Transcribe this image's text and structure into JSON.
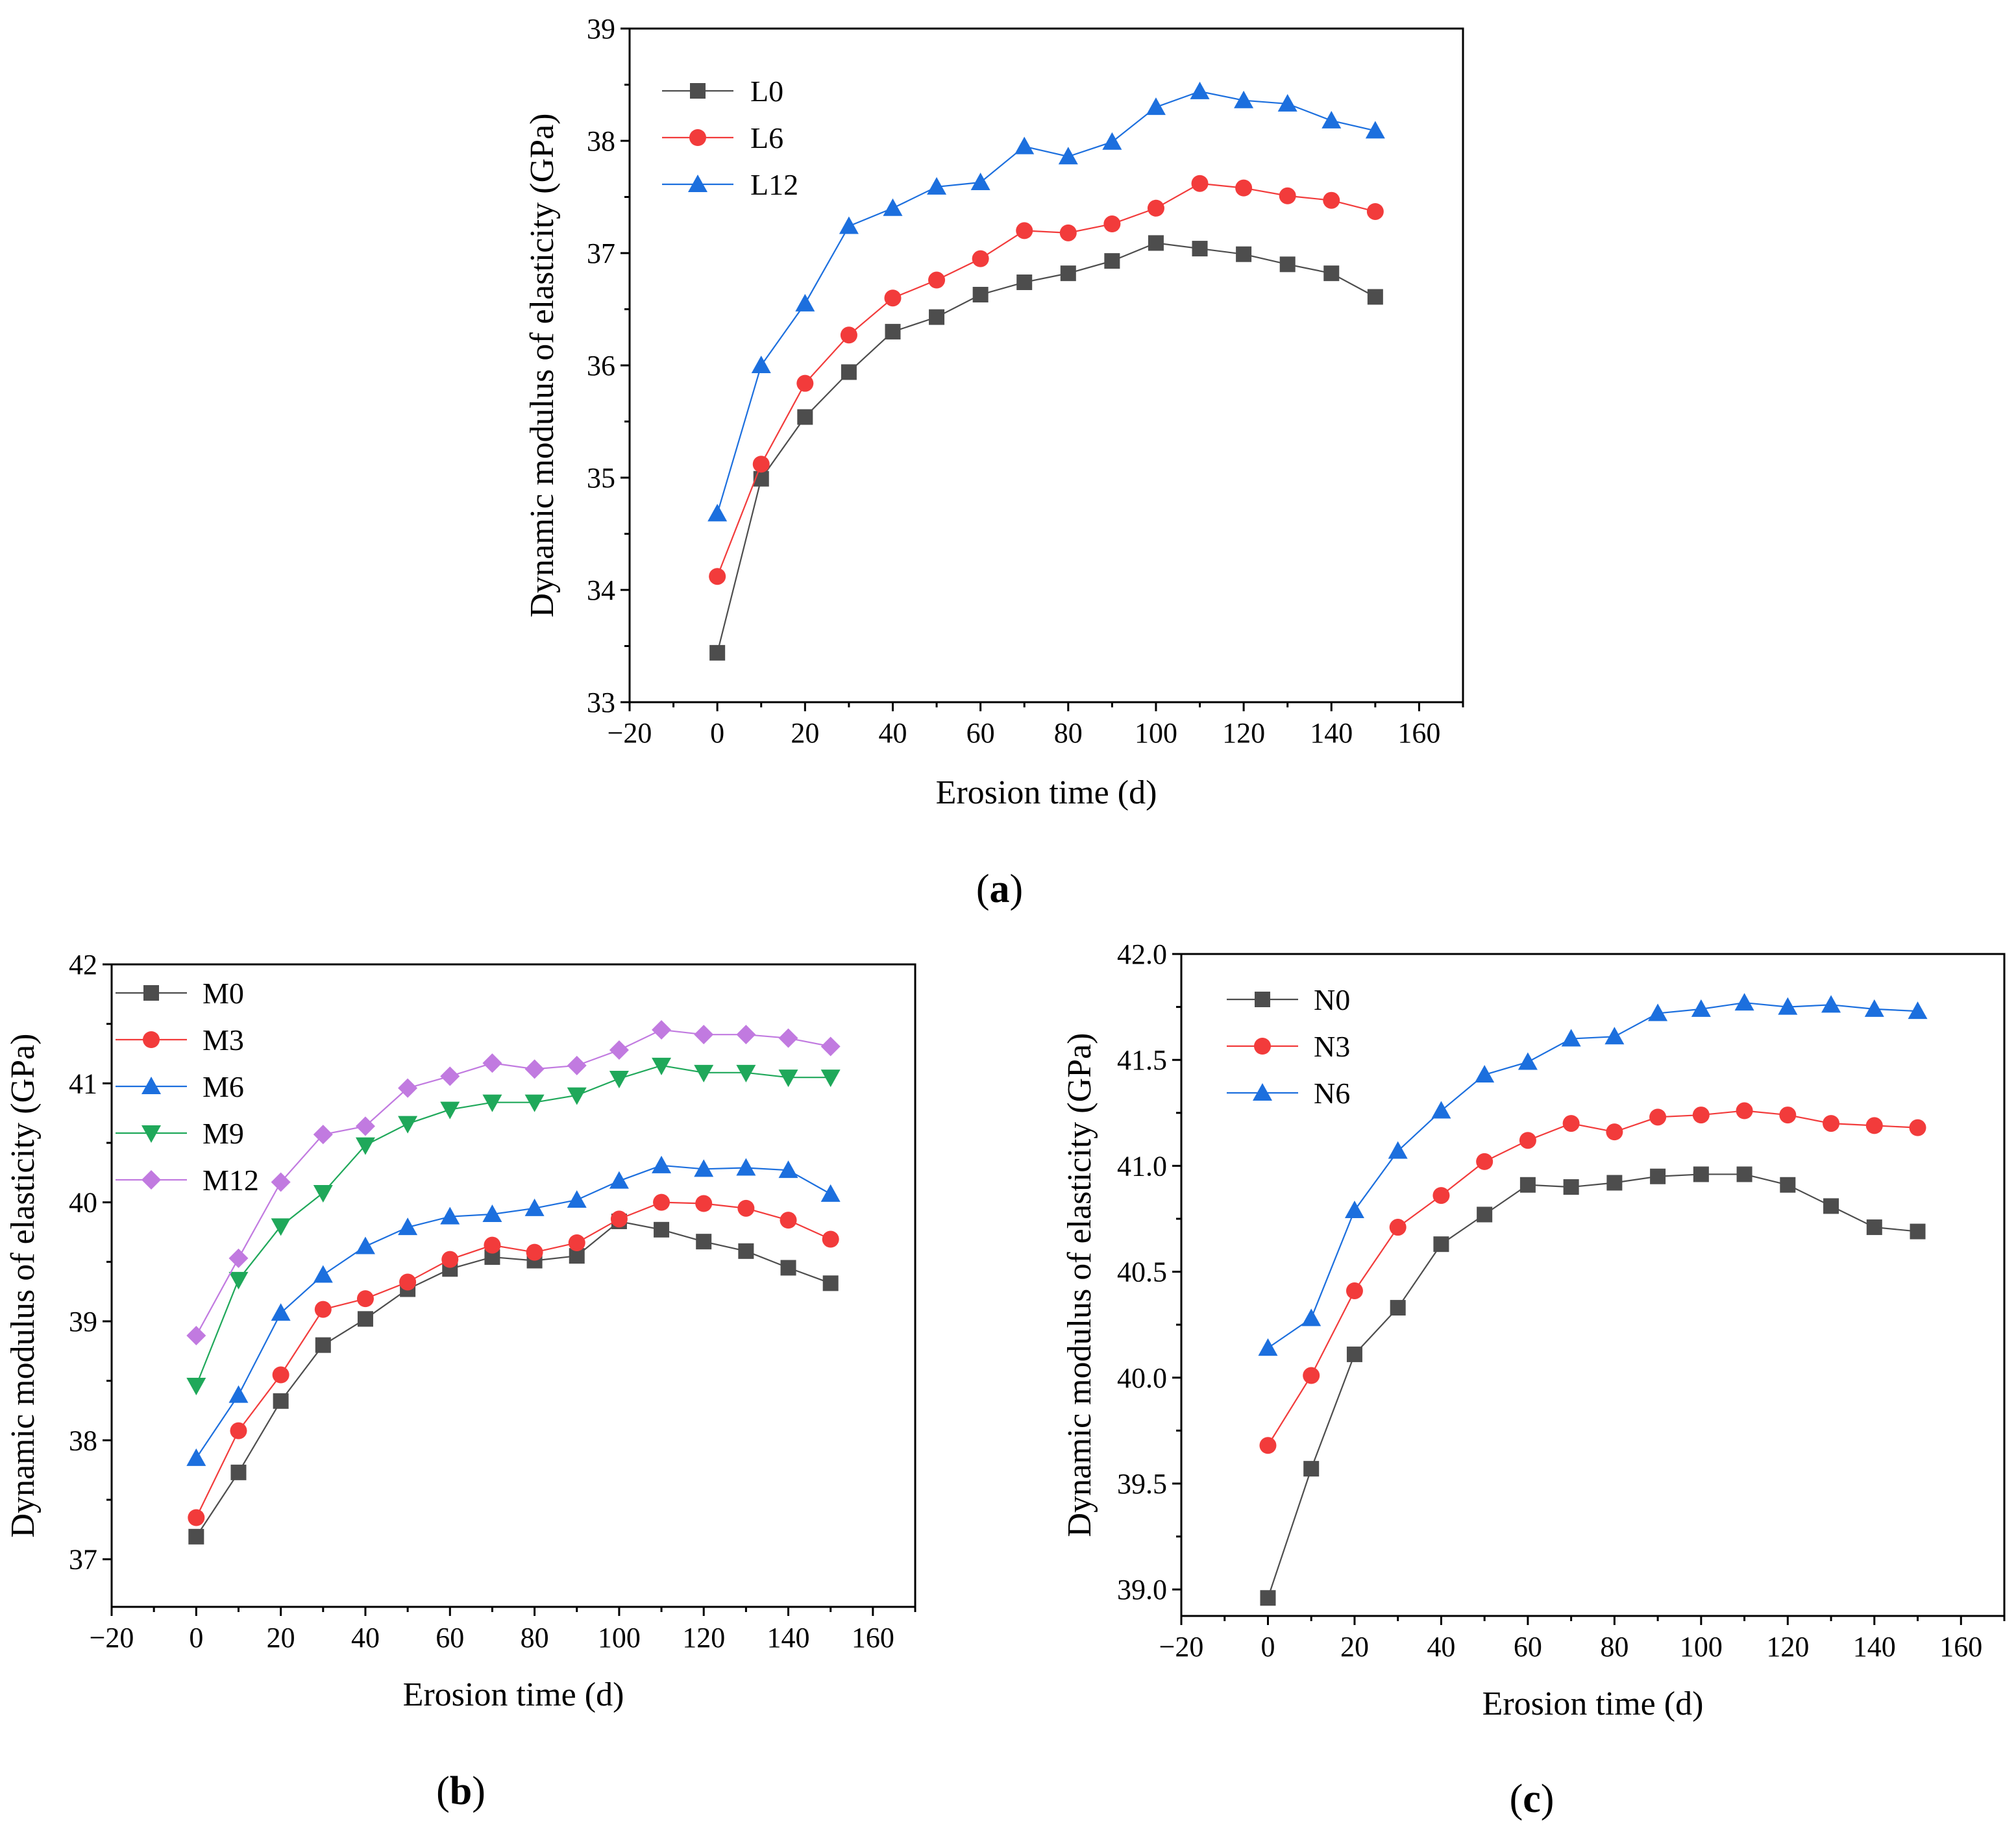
{
  "chart_data": [
    {
      "type": "line",
      "panel_label": "a",
      "xlabel": "Erosion time (d)",
      "ylabel": "Dynamic modulus of elasticity (GPa)",
      "xlim": [
        -20,
        170
      ],
      "ylim": [
        33,
        39
      ],
      "xticks": [
        -20,
        0,
        20,
        40,
        60,
        80,
        100,
        120,
        140,
        160
      ],
      "yticks": [
        33,
        34,
        35,
        36,
        37,
        38,
        39
      ],
      "xtick_labels": [
        "−20",
        "0",
        "20",
        "40",
        "60",
        "80",
        "100",
        "120",
        "140",
        "160"
      ],
      "ytick_labels": [
        "33",
        "34",
        "35",
        "36",
        "37",
        "38",
        "39"
      ],
      "legend_position": "top-left",
      "x": [
        0,
        10,
        20,
        30,
        40,
        50,
        60,
        70,
        80,
        90,
        100,
        110,
        120,
        130,
        140,
        150
      ],
      "series": [
        {
          "name": "L0",
          "color": "#4d4d4d",
          "marker": "square",
          "values": [
            33.44,
            34.99,
            35.54,
            35.94,
            36.3,
            36.43,
            36.63,
            36.74,
            36.82,
            36.93,
            37.09,
            37.04,
            36.99,
            36.9,
            36.82,
            36.61
          ]
        },
        {
          "name": "L6",
          "color": "#f23b3b",
          "marker": "circle",
          "values": [
            34.12,
            35.12,
            35.84,
            36.27,
            36.6,
            36.76,
            36.95,
            37.2,
            37.18,
            37.26,
            37.4,
            37.62,
            37.58,
            37.51,
            37.47,
            37.37
          ]
        },
        {
          "name": "L12",
          "color": "#1c6fde",
          "marker": "triangle-up",
          "values": [
            34.68,
            36.0,
            36.55,
            37.24,
            37.4,
            37.59,
            37.63,
            37.95,
            37.86,
            37.99,
            38.3,
            38.44,
            38.36,
            38.33,
            38.18,
            38.09
          ]
        }
      ]
    },
    {
      "type": "line",
      "panel_label": "b",
      "xlabel": "Erosion time (d)",
      "ylabel": "Dynamic modulus of elasticity (GPa)",
      "xlim": [
        -20,
        170
      ],
      "ylim": [
        36.6,
        42
      ],
      "xticks": [
        -20,
        0,
        20,
        40,
        60,
        80,
        100,
        120,
        140,
        160
      ],
      "yticks": [
        37,
        38,
        39,
        40,
        41,
        42
      ],
      "xtick_labels": [
        "−20",
        "0",
        "20",
        "40",
        "60",
        "80",
        "100",
        "120",
        "140",
        "160"
      ],
      "ytick_labels": [
        "37",
        "38",
        "39",
        "40",
        "41",
        "42"
      ],
      "legend_position": "top-left",
      "x": [
        0,
        10,
        20,
        30,
        40,
        50,
        60,
        70,
        80,
        90,
        100,
        110,
        120,
        130,
        140,
        150
      ],
      "series": [
        {
          "name": "M0",
          "color": "#4d4d4d",
          "marker": "square",
          "values": [
            37.19,
            37.73,
            38.33,
            38.8,
            39.02,
            39.27,
            39.44,
            39.54,
            39.51,
            39.55,
            39.84,
            39.77,
            39.67,
            39.59,
            39.45,
            39.32
          ]
        },
        {
          "name": "M3",
          "color": "#f23b3b",
          "marker": "circle",
          "values": [
            37.35,
            38.08,
            38.55,
            39.1,
            39.19,
            39.33,
            39.52,
            39.64,
            39.58,
            39.66,
            39.86,
            40.0,
            39.99,
            39.95,
            39.85,
            39.69
          ]
        },
        {
          "name": "M6",
          "color": "#1c6fde",
          "marker": "triangle-up",
          "values": [
            37.85,
            38.38,
            39.07,
            39.39,
            39.63,
            39.79,
            39.88,
            39.9,
            39.95,
            40.02,
            40.18,
            40.31,
            40.28,
            40.29,
            40.27,
            40.07
          ]
        },
        {
          "name": "M9",
          "color": "#1fa85a",
          "marker": "triangle-down",
          "values": [
            38.46,
            39.35,
            39.8,
            40.08,
            40.48,
            40.66,
            40.78,
            40.84,
            40.84,
            40.9,
            41.04,
            41.15,
            41.09,
            41.09,
            41.05,
            41.05
          ]
        },
        {
          "name": "M12",
          "color": "#c17ae0",
          "marker": "diamond",
          "values": [
            38.88,
            39.53,
            40.17,
            40.57,
            40.64,
            40.96,
            41.06,
            41.17,
            41.12,
            41.15,
            41.28,
            41.45,
            41.41,
            41.41,
            41.38,
            41.31
          ]
        }
      ]
    },
    {
      "type": "line",
      "panel_label": "c",
      "xlabel": "Erosion time (d)",
      "ylabel": "Dynamic modulus of elasticity (GPa)",
      "xlim": [
        -20,
        170
      ],
      "ylim": [
        38.875,
        42.0
      ],
      "xticks": [
        -20,
        0,
        20,
        40,
        60,
        80,
        100,
        120,
        140,
        160
      ],
      "yticks": [
        39.0,
        39.5,
        40.0,
        40.5,
        41.0,
        41.5,
        42.0
      ],
      "xtick_labels": [
        "−20",
        "0",
        "20",
        "40",
        "60",
        "80",
        "100",
        "120",
        "140",
        "160"
      ],
      "ytick_labels": [
        "39.0",
        "39.5",
        "40.0",
        "40.5",
        "41.0",
        "41.5",
        "42.0"
      ],
      "legend_position": "top-left",
      "x": [
        0,
        10,
        20,
        30,
        40,
        50,
        60,
        70,
        80,
        90,
        100,
        110,
        120,
        130,
        140,
        150
      ],
      "series": [
        {
          "name": "N0",
          "color": "#4d4d4d",
          "marker": "square",
          "values": [
            38.96,
            39.57,
            40.11,
            40.33,
            40.63,
            40.77,
            40.91,
            40.9,
            40.92,
            40.95,
            40.96,
            40.96,
            40.91,
            40.81,
            40.71,
            40.69
          ]
        },
        {
          "name": "N3",
          "color": "#f23b3b",
          "marker": "circle",
          "values": [
            39.68,
            40.01,
            40.41,
            40.71,
            40.86,
            41.02,
            41.12,
            41.2,
            41.16,
            41.23,
            41.24,
            41.26,
            41.24,
            41.2,
            41.19,
            41.18
          ]
        },
        {
          "name": "N6",
          "color": "#1c6fde",
          "marker": "triangle-up",
          "values": [
            40.14,
            40.28,
            40.79,
            41.07,
            41.26,
            41.43,
            41.49,
            41.6,
            41.61,
            41.72,
            41.74,
            41.77,
            41.75,
            41.76,
            41.74,
            41.73
          ]
        }
      ]
    }
  ]
}
